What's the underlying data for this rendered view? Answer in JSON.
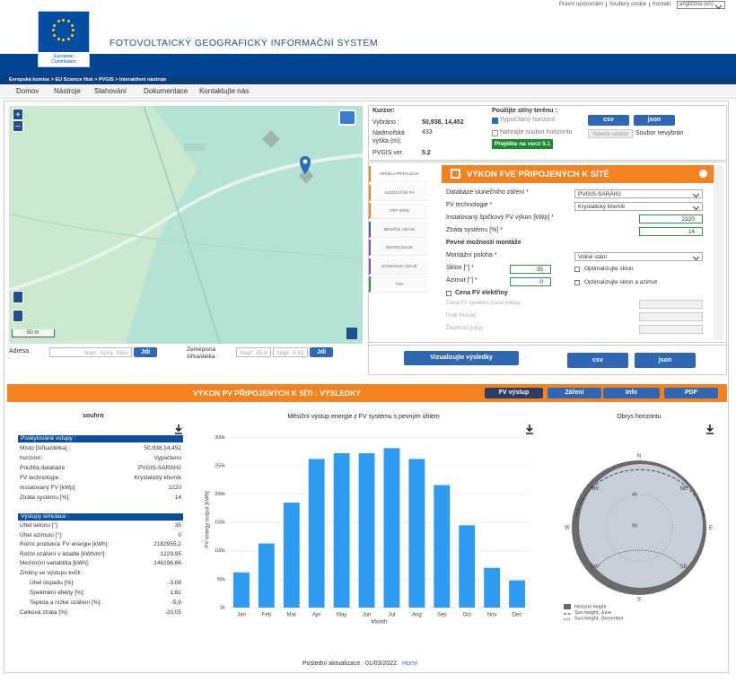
{
  "top_links": [
    "Právní upozornění",
    "Soubory cookie",
    "Kontakt"
  ],
  "language": "angličtina (en)",
  "header": {
    "logo_text": "European Commission",
    "title": "FOTOVOLTAICKÝ GEOGRAFICKÝ INFORMAČNÍ SYSTÉM"
  },
  "breadcrumb": "Evropská komise > EU Science Hub > PVGIS > Interaktivní nástroje",
  "nav": [
    "Domov",
    "Nástroje",
    "Stahování",
    "Dokumentace",
    "Kontaktujte nás"
  ],
  "map": {
    "zoom_in": "+",
    "zoom_out": "−",
    "scale": "50 m"
  },
  "search": {
    "address_label": "Adresa :",
    "address_placeholder": "Např. Ispra, Itálie",
    "go": "Jdi",
    "coords_label": "Zeměpisná šířka/délka :",
    "lat_placeholder": "Např. 45,8",
    "lon_placeholder": "Např. 8,61",
    "go2": "Jdi"
  },
  "cursor": {
    "title": "Kurzor:",
    "selected_label": "Vybráno :",
    "selected": "50,938, 14,452",
    "elevation_label": "Nadmořská výška (m):",
    "elevation": "433",
    "version_label": "PVGIS ver.",
    "version": "5.2"
  },
  "terrain": {
    "title": "Použijte stíny terénu :",
    "computed": "Vypočítaný horizont",
    "upload": "Nahrajte soubor horizontu",
    "choose": "Vyberte soubor",
    "no_file": "Soubor nevybrán",
    "csv": "csv",
    "json": "json",
    "v51": "Přejděte na verzi 5.1"
  },
  "tabs": [
    "MŘÍŽKA PŘIPOJENÁ",
    "SLEDOVÁNÍ FV",
    "OFF-GRID",
    "MĚSÍČNÍ ÚDAJE",
    "DENNÍ ÚDAJE",
    "HODINOVÉ ÚDAJE",
    "TMY"
  ],
  "form": {
    "title": "VÝKON FVE PŘIPOJENÝCH K SÍTĚ",
    "db_label": "Databáze slunečního záření *",
    "db": "PVGIS-SARAH2",
    "tech_label": "FV technologie *",
    "tech": "Krystalický křemík",
    "power_label": "Instalovaný špičkový FV výkon [kWp] *",
    "power": "2220",
    "loss_label": "Ztráta systému [%] *",
    "loss": "14",
    "mount_title": "Pevné možnosti montáže",
    "position_label": "Montážní poloha *",
    "position": "Volně stání",
    "slope_label": "Sklon [°] *",
    "slope": "35",
    "opt_slope": "Optimalizujte sklon",
    "azimuth_label": "Azimut [°] *",
    "azimuth": "0",
    "opt_both": "Optimalizujte sklon a azimut",
    "price_title": "Cena FV elektřiny",
    "cost_label": "Cena FV systému (vaše měna)",
    "interest_label": "Úrok [%/rok]",
    "lifetime_label": "Životnost [roky]"
  },
  "actions": {
    "visualize": "Vizualizujte výsledky",
    "csv": "csv",
    "json": "json"
  },
  "results": {
    "title": "VÝKON PV PŘIPOJENÝCH K SÍTI : VÝSLEDKY",
    "buttons": [
      "FV výstup",
      "Záření",
      "Info",
      "PDF"
    ]
  },
  "summary": {
    "title": "souhrn",
    "inputs_title": "Poskytované vstupy :",
    "inputs": [
      [
        "Místo [šířka/délka] :",
        "50,938,14,452"
      ],
      [
        "horizont :",
        "Vypočteno"
      ],
      [
        "Použitá databáze :",
        "PVGIS-SARAH2"
      ],
      [
        "FV technologie :",
        "Krystalický křemík"
      ],
      [
        "Instalovaný FV [kWp]:",
        "2220"
      ],
      [
        "Ztráta systému [%]:",
        "14"
      ]
    ],
    "outputs_title": "Výstupy simulace :",
    "outputs": [
      [
        "Úhel sklonu [°]:",
        "35"
      ],
      [
        "Úhel azimutu [°]:",
        "0"
      ],
      [
        "Roční produkce FV energie [kWh]:",
        "2182955,2"
      ],
      [
        "Roční ozáření v letadle [kWh/m²]:",
        "1229,95"
      ],
      [
        "Meziroční variabilita [kWh]:",
        "146186,86"
      ]
    ],
    "changes_title": "Změny ve výstupu kvůli :",
    "changes": [
      [
        "Úhel dopadu [%]:",
        "-3,08"
      ],
      [
        "Spektrální efekty [%]:",
        "1,82"
      ],
      [
        "Teplota a nízké ozáření [%]:",
        "-5,6"
      ]
    ],
    "total": [
      "Celková ztráta [%]:",
      "-20,05"
    ]
  },
  "chart_data": {
    "type": "bar",
    "title": "Měsíční výstup energie z FV systému s pevným úhlem",
    "y_label": "PV energy output [kWh]",
    "x_label": "Month",
    "categories": [
      "Jan",
      "Feb",
      "Mar",
      "Apr",
      "May",
      "Jun",
      "Jul",
      "Aug",
      "Sep",
      "Oct",
      "Nov",
      "Dec"
    ],
    "values": [
      62000,
      113000,
      185000,
      262000,
      272000,
      272000,
      281000,
      262000,
      216000,
      145000,
      70000,
      48000
    ],
    "color": "#2e9bf0",
    "ylim": [
      0,
      310000
    ],
    "yticks": [
      {
        "value": 0,
        "label": "0k"
      },
      {
        "value": 50000,
        "label": "50k"
      },
      {
        "value": 100000,
        "label": "100k"
      },
      {
        "value": 150000,
        "label": "150k"
      },
      {
        "value": 200000,
        "label": "200k"
      },
      {
        "value": 250000,
        "label": "250k"
      },
      {
        "value": 300000,
        "label": "300k"
      }
    ],
    "grid": true
  },
  "horizon": {
    "title": "Obrys horizontu",
    "directions": [
      "N",
      "NE",
      "E",
      "SE",
      "S",
      "SW",
      "W",
      "NW"
    ],
    "rings": [
      "45",
      "90"
    ],
    "legend": [
      "Horizon height",
      "Sun height, June",
      "Sun height, December"
    ]
  },
  "footer": {
    "updated": "Poslední aktualizace : 01/03/2022",
    "top": "Horní"
  }
}
